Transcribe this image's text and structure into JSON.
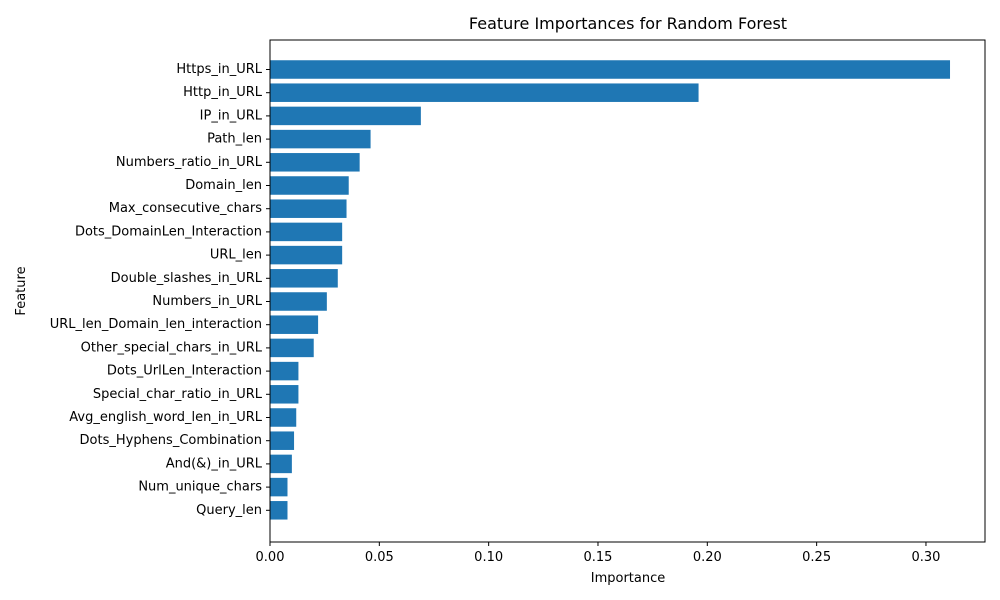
{
  "chart_data": {
    "type": "bar",
    "orientation": "horizontal",
    "title": "Feature Importances for Random Forest",
    "xlabel": "Importance",
    "ylabel": "Feature",
    "xlim": [
      0,
      0.327
    ],
    "x_ticks": [
      "0.00",
      "0.05",
      "0.10",
      "0.15",
      "0.20",
      "0.25",
      "0.30"
    ],
    "grid": false,
    "bar_color": "#1f77b4",
    "categories": [
      "Https_in_URL",
      "Http_in_URL",
      "IP_in_URL",
      "Path_len",
      "Numbers_ratio_in_URL",
      "Domain_len",
      "Max_consecutive_chars",
      "Dots_DomainLen_Interaction",
      "URL_len",
      "Double_slashes_in_URL",
      "Numbers_in_URL",
      "URL_len_Domain_len_interaction",
      "Other_special_chars_in_URL",
      "Dots_UrlLen_Interaction",
      "Special_char_ratio_in_URL",
      "Avg_english_word_len_in_URL",
      "Dots_Hyphens_Combination",
      "And(&)_in_URL",
      "Num_unique_chars",
      "Query_len"
    ],
    "values": [
      0.311,
      0.196,
      0.069,
      0.046,
      0.041,
      0.036,
      0.035,
      0.033,
      0.033,
      0.031,
      0.026,
      0.022,
      0.02,
      0.013,
      0.013,
      0.012,
      0.011,
      0.01,
      0.008,
      0.008
    ]
  }
}
